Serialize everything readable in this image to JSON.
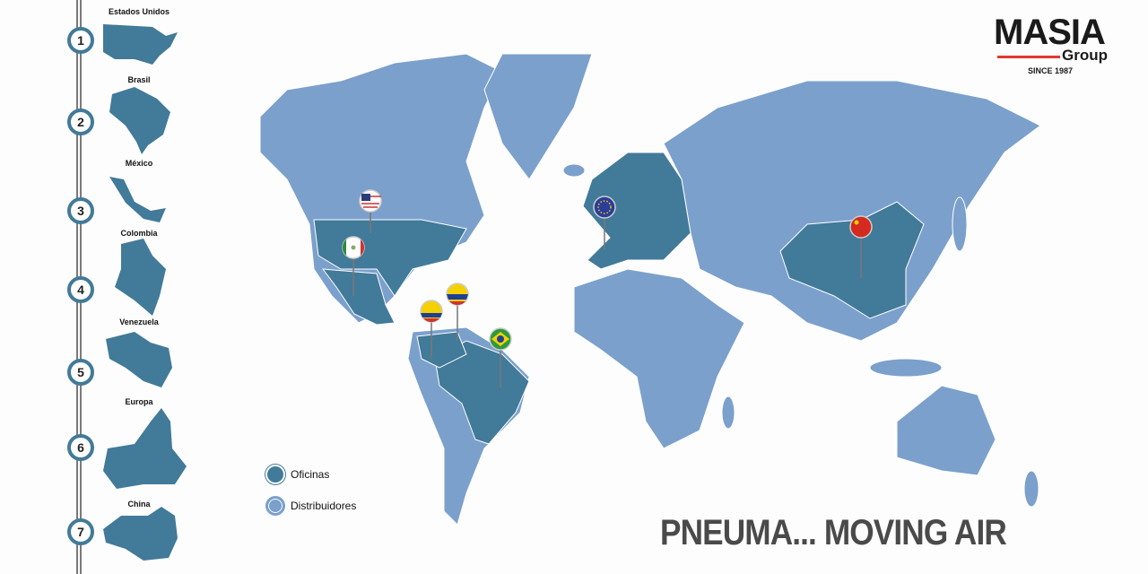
{
  "brand": {
    "name": "MASIA",
    "sub": "Group",
    "since": "SINCE 1987",
    "accent": "#e03a2f"
  },
  "colors": {
    "oficinas": "#427a99",
    "distribuidores": "#7ba0cc"
  },
  "countries": [
    {
      "number": "1",
      "label": "Estados Unidos"
    },
    {
      "number": "2",
      "label": "Brasil"
    },
    {
      "number": "3",
      "label": "México"
    },
    {
      "number": "4",
      "label": "Colombia"
    },
    {
      "number": "5",
      "label": "Venezuela"
    },
    {
      "number": "6",
      "label": "Europa"
    },
    {
      "number": "7",
      "label": "China"
    }
  ],
  "legend": {
    "oficinas": "Oficinas",
    "distribuidores": "Distribuidores"
  },
  "slogan": "PNEUMA... MOVING AIR",
  "pins": [
    "usa-flag-icon",
    "mexico-flag-icon",
    "venezuela-flag-icon",
    "colombia-flag-icon",
    "brazil-flag-icon",
    "eu-flag-icon",
    "china-flag-icon"
  ]
}
